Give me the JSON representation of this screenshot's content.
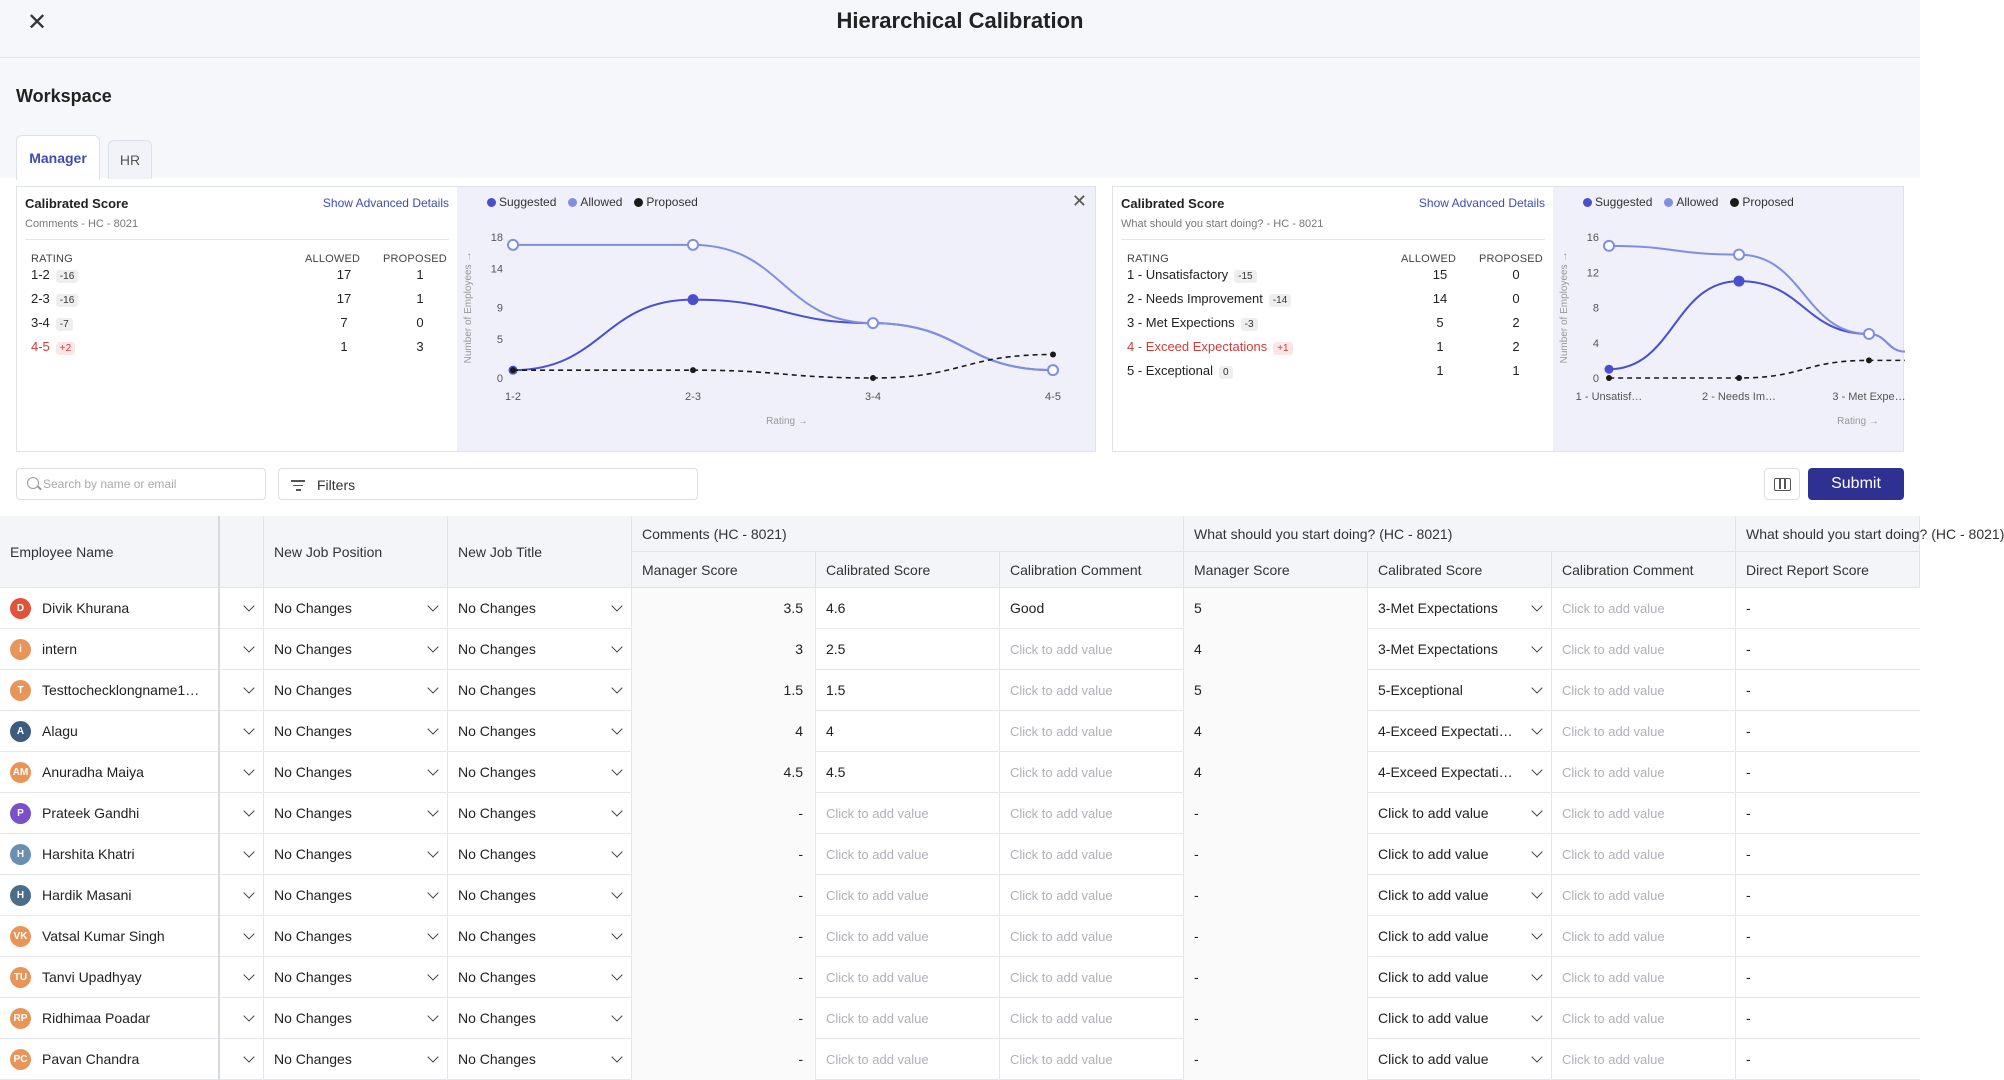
{
  "header": {
    "title": "Hierarchical Calibration",
    "close_icon": "close-icon"
  },
  "workspace": {
    "label": "Workspace"
  },
  "tabs": [
    {
      "label": "Manager",
      "active": true
    },
    {
      "label": "HR",
      "active": false
    }
  ],
  "panels": [
    {
      "title": "Calibrated Score",
      "subtitle": "Comments - HC - 8021",
      "advanced_link": "Show Advanced Details",
      "headers": {
        "rating": "RATING",
        "allowed": "ALLOWED",
        "proposed": "PROPOSED"
      },
      "rows": [
        {
          "label": "1-2",
          "badge": "-16",
          "allowed": "17",
          "proposed": "1",
          "highlight": false
        },
        {
          "label": "2-3",
          "badge": "-16",
          "allowed": "17",
          "proposed": "1",
          "highlight": false
        },
        {
          "label": "3-4",
          "badge": "-7",
          "allowed": "7",
          "proposed": "0",
          "highlight": false
        },
        {
          "label": "4-5",
          "badge": "+2",
          "allowed": "1",
          "proposed": "3",
          "highlight": true
        }
      ],
      "legend": [
        "Suggested",
        "Allowed",
        "Proposed"
      ],
      "chart_data": {
        "type": "line",
        "ylabel": "Number of Employees →",
        "xlabel": "Rating →",
        "categories": [
          "1-2",
          "2-3",
          "3-4",
          "4-5"
        ],
        "yticks": [
          0,
          5,
          9,
          14,
          18
        ],
        "ylim": [
          0,
          18
        ],
        "series": [
          {
            "name": "Suggested",
            "color": "#4a4fd0",
            "values": [
              1,
              10,
              7,
              1
            ]
          },
          {
            "name": "Allowed",
            "color": "#7f8ee0",
            "values": [
              17,
              17,
              7,
              1
            ]
          },
          {
            "name": "Proposed",
            "color": "#1a1a1a",
            "values": [
              1,
              1,
              0,
              3
            ]
          }
        ]
      }
    },
    {
      "title": "Calibrated Score",
      "subtitle": "What should you start doing? - HC - 8021",
      "advanced_link": "Show Advanced Details",
      "headers": {
        "rating": "RATING",
        "allowed": "ALLOWED",
        "proposed": "PROPOSED"
      },
      "rows": [
        {
          "label": "1 - Unsatisfactory",
          "badge": "-15",
          "allowed": "15",
          "proposed": "0",
          "highlight": false
        },
        {
          "label": "2 - Needs Improvement",
          "badge": "-14",
          "allowed": "14",
          "proposed": "0",
          "highlight": false
        },
        {
          "label": "3 - Met Expections",
          "badge": "-3",
          "allowed": "5",
          "proposed": "2",
          "highlight": false
        },
        {
          "label": "4 - Exceed Expectations",
          "badge": "+1",
          "allowed": "1",
          "proposed": "2",
          "highlight": true
        },
        {
          "label": "5 - Exceptional",
          "badge": "0",
          "allowed": "1",
          "proposed": "1",
          "highlight": false
        }
      ],
      "legend": [
        "Suggested",
        "Allowed",
        "Proposed"
      ],
      "chart_data": {
        "type": "line",
        "ylabel": "Number of Employees →",
        "xlabel": "Rating →",
        "categories": [
          "1 - Unsatisf…",
          "2 - Needs Im…",
          "3 - Met Expe…"
        ],
        "yticks": [
          0,
          4,
          8,
          12,
          16
        ],
        "ylim": [
          0,
          16
        ],
        "series": [
          {
            "name": "Suggested",
            "color": "#4a4fd0",
            "values": [
              1,
              11,
              5
            ]
          },
          {
            "name": "Allowed",
            "color": "#7f8ee0",
            "values": [
              15,
              14,
              5
            ]
          },
          {
            "name": "Proposed",
            "color": "#1a1a1a",
            "values": [
              0,
              0,
              2
            ]
          }
        ]
      }
    }
  ],
  "toolbar": {
    "search_placeholder": "Search by name or email",
    "filters_label": "Filters",
    "submit_label": "Submit"
  },
  "grid": {
    "group_headers": {
      "comments": "Comments (HC - 8021)",
      "start": "What should you start doing? (HC - 8021)",
      "start2": "What should you start doing? (HC - 8021)"
    },
    "columns": {
      "employee": "Employee Name",
      "job_position": "New Job Position",
      "job_title": "New Job Title",
      "c_manager": "Manager Score",
      "c_calibrated": "Calibrated Score",
      "c_comment": "Calibration Comment",
      "s_manager": "Manager Score",
      "s_calibrated": "Calibrated Score",
      "s_comment": "Calibration Comment",
      "direct_report": "Direct Report Score"
    },
    "rows": [
      {
        "initials": "D",
        "avatar_color": "#e0533a",
        "name": "Divik Khurana",
        "job_position": "No Changes",
        "job_title": "No Changes",
        "c_manager": "3.5",
        "c_calibrated": "4.6",
        "c_comment": "Good",
        "s_manager": "5",
        "s_calibrated": "3-Met Expectations",
        "s_comment": "Click to add value",
        "direct_report": "-"
      },
      {
        "initials": "i",
        "avatar_color": "#e8955a",
        "name": "intern",
        "job_position": "No Changes",
        "job_title": "No Changes",
        "c_manager": "3",
        "c_calibrated": "2.5",
        "c_comment": "Click to add value",
        "s_manager": "4",
        "s_calibrated": "3-Met Expectations",
        "s_comment": "Click to add value",
        "direct_report": "-"
      },
      {
        "initials": "T",
        "avatar_color": "#e8955a",
        "name": "Testtochecklongname1…",
        "job_position": "No Changes",
        "job_title": "No Changes",
        "c_manager": "1.5",
        "c_calibrated": "1.5",
        "c_comment": "Click to add value",
        "s_manager": "5",
        "s_calibrated": "5-Exceptional",
        "s_comment": "Click to add value",
        "direct_report": "-"
      },
      {
        "initials": "A",
        "avatar_color": "#3d5a80",
        "name": "Alagu",
        "job_position": "No Changes",
        "job_title": "No Changes",
        "c_manager": "4",
        "c_calibrated": "4",
        "c_comment": "Click to add value",
        "s_manager": "4",
        "s_calibrated": "4-Exceed Expectati…",
        "s_comment": "Click to add value",
        "direct_report": "-"
      },
      {
        "initials": "AM",
        "avatar_color": "#e8955a",
        "name": "Anuradha Maiya",
        "job_position": "No Changes",
        "job_title": "No Changes",
        "c_manager": "4.5",
        "c_calibrated": "4.5",
        "c_comment": "Click to add value",
        "s_manager": "4",
        "s_calibrated": "4-Exceed Expectati…",
        "s_comment": "Click to add value",
        "direct_report": "-"
      },
      {
        "initials": "P",
        "avatar_color": "#7a4fc8",
        "name": "Prateek Gandhi",
        "job_position": "No Changes",
        "job_title": "No Changes",
        "c_manager": "-",
        "c_calibrated": "Click to add value",
        "c_comment": "Click to add value",
        "s_manager": "-",
        "s_calibrated": "Click to add value",
        "s_comment": "Click to add value",
        "direct_report": "-"
      },
      {
        "initials": "H",
        "avatar_color": "#6a8fb0",
        "name": "Harshita Khatri",
        "job_position": "No Changes",
        "job_title": "No Changes",
        "c_manager": "-",
        "c_calibrated": "Click to add value",
        "c_comment": "Click to add value",
        "s_manager": "-",
        "s_calibrated": "Click to add value",
        "s_comment": "Click to add value",
        "direct_report": "-"
      },
      {
        "initials": "H",
        "avatar_color": "#4a6d8c",
        "name": "Hardik Masani",
        "job_position": "No Changes",
        "job_title": "No Changes",
        "c_manager": "-",
        "c_calibrated": "Click to add value",
        "c_comment": "Click to add value",
        "s_manager": "-",
        "s_calibrated": "Click to add value",
        "s_comment": "Click to add value",
        "direct_report": "-"
      },
      {
        "initials": "VK",
        "avatar_color": "#e8955a",
        "name": "Vatsal Kumar Singh",
        "job_position": "No Changes",
        "job_title": "No Changes",
        "c_manager": "-",
        "c_calibrated": "Click to add value",
        "c_comment": "Click to add value",
        "s_manager": "-",
        "s_calibrated": "Click to add value",
        "s_comment": "Click to add value",
        "direct_report": "-"
      },
      {
        "initials": "TU",
        "avatar_color": "#e8955a",
        "name": "Tanvi Upadhyay",
        "job_position": "No Changes",
        "job_title": "No Changes",
        "c_manager": "-",
        "c_calibrated": "Click to add value",
        "c_comment": "Click to add value",
        "s_manager": "-",
        "s_calibrated": "Click to add value",
        "s_comment": "Click to add value",
        "direct_report": "-"
      },
      {
        "initials": "RP",
        "avatar_color": "#e8955a",
        "name": "Ridhimaa Poadar",
        "job_position": "No Changes",
        "job_title": "No Changes",
        "c_manager": "-",
        "c_calibrated": "Click to add value",
        "c_comment": "Click to add value",
        "s_manager": "-",
        "s_calibrated": "Click to add value",
        "s_comment": "Click to add value",
        "direct_report": "-"
      },
      {
        "initials": "PC",
        "avatar_color": "#e8955a",
        "name": "Pavan Chandra",
        "job_position": "No Changes",
        "job_title": "No Changes",
        "c_manager": "-",
        "c_calibrated": "Click to add value",
        "c_comment": "Click to add value",
        "s_manager": "-",
        "s_calibrated": "Click to add value",
        "s_comment": "Click to add value",
        "direct_report": "-"
      }
    ]
  }
}
